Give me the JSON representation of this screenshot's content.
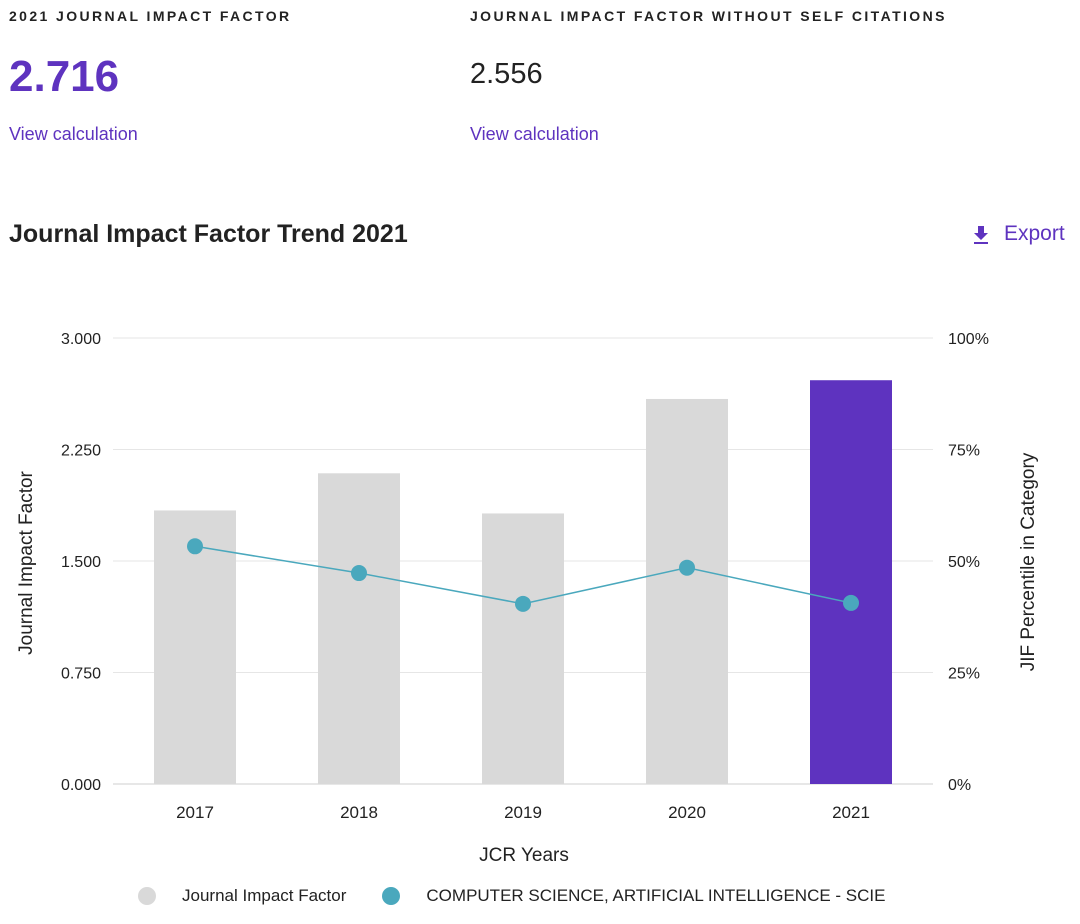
{
  "metrics": {
    "jif": {
      "label": "2021 JOURNAL IMPACT FACTOR",
      "value": "2.716",
      "link": "View calculation"
    },
    "jif_no_self": {
      "label": "JOURNAL IMPACT FACTOR WITHOUT SELF CITATIONS",
      "value": "2.556",
      "link": "View calculation"
    }
  },
  "trend": {
    "title": "Journal Impact Factor Trend 2021",
    "export_label": "Export",
    "export_icon": "download-icon"
  },
  "colors": {
    "accent": "#5e33bf",
    "bar_default": "#d9d9d9",
    "bar_highlight": "#5e33bf",
    "line": "#4aa8bd"
  },
  "chart_data": {
    "type": "bar",
    "title": "Journal Impact Factor Trend 2021",
    "xlabel": "JCR Years",
    "ylabel": "Journal Impact Factor",
    "y2label": "JIF Percentile in Category",
    "categories": [
      "2017",
      "2018",
      "2019",
      "2020",
      "2021"
    ],
    "ylim": [
      0,
      3
    ],
    "y_ticks": [
      "0.000",
      "0.750",
      "1.500",
      "2.250",
      "3.000"
    ],
    "y2lim": [
      0,
      100
    ],
    "y2_ticks": [
      "0%",
      "25%",
      "50%",
      "75%",
      "100%"
    ],
    "highlight_category": "2021",
    "grid": true,
    "legend_position": "bottom",
    "series": [
      {
        "name": "Journal Impact Factor",
        "type": "bar",
        "axis": "left",
        "values": [
          1.84,
          2.09,
          1.82,
          2.59,
          2.716
        ]
      },
      {
        "name": "COMPUTER SCIENCE, ARTIFICIAL INTELLIGENCE - SCIE",
        "type": "line",
        "axis": "right",
        "values": [
          53.3,
          47.3,
          40.4,
          48.5,
          40.6
        ]
      }
    ]
  }
}
